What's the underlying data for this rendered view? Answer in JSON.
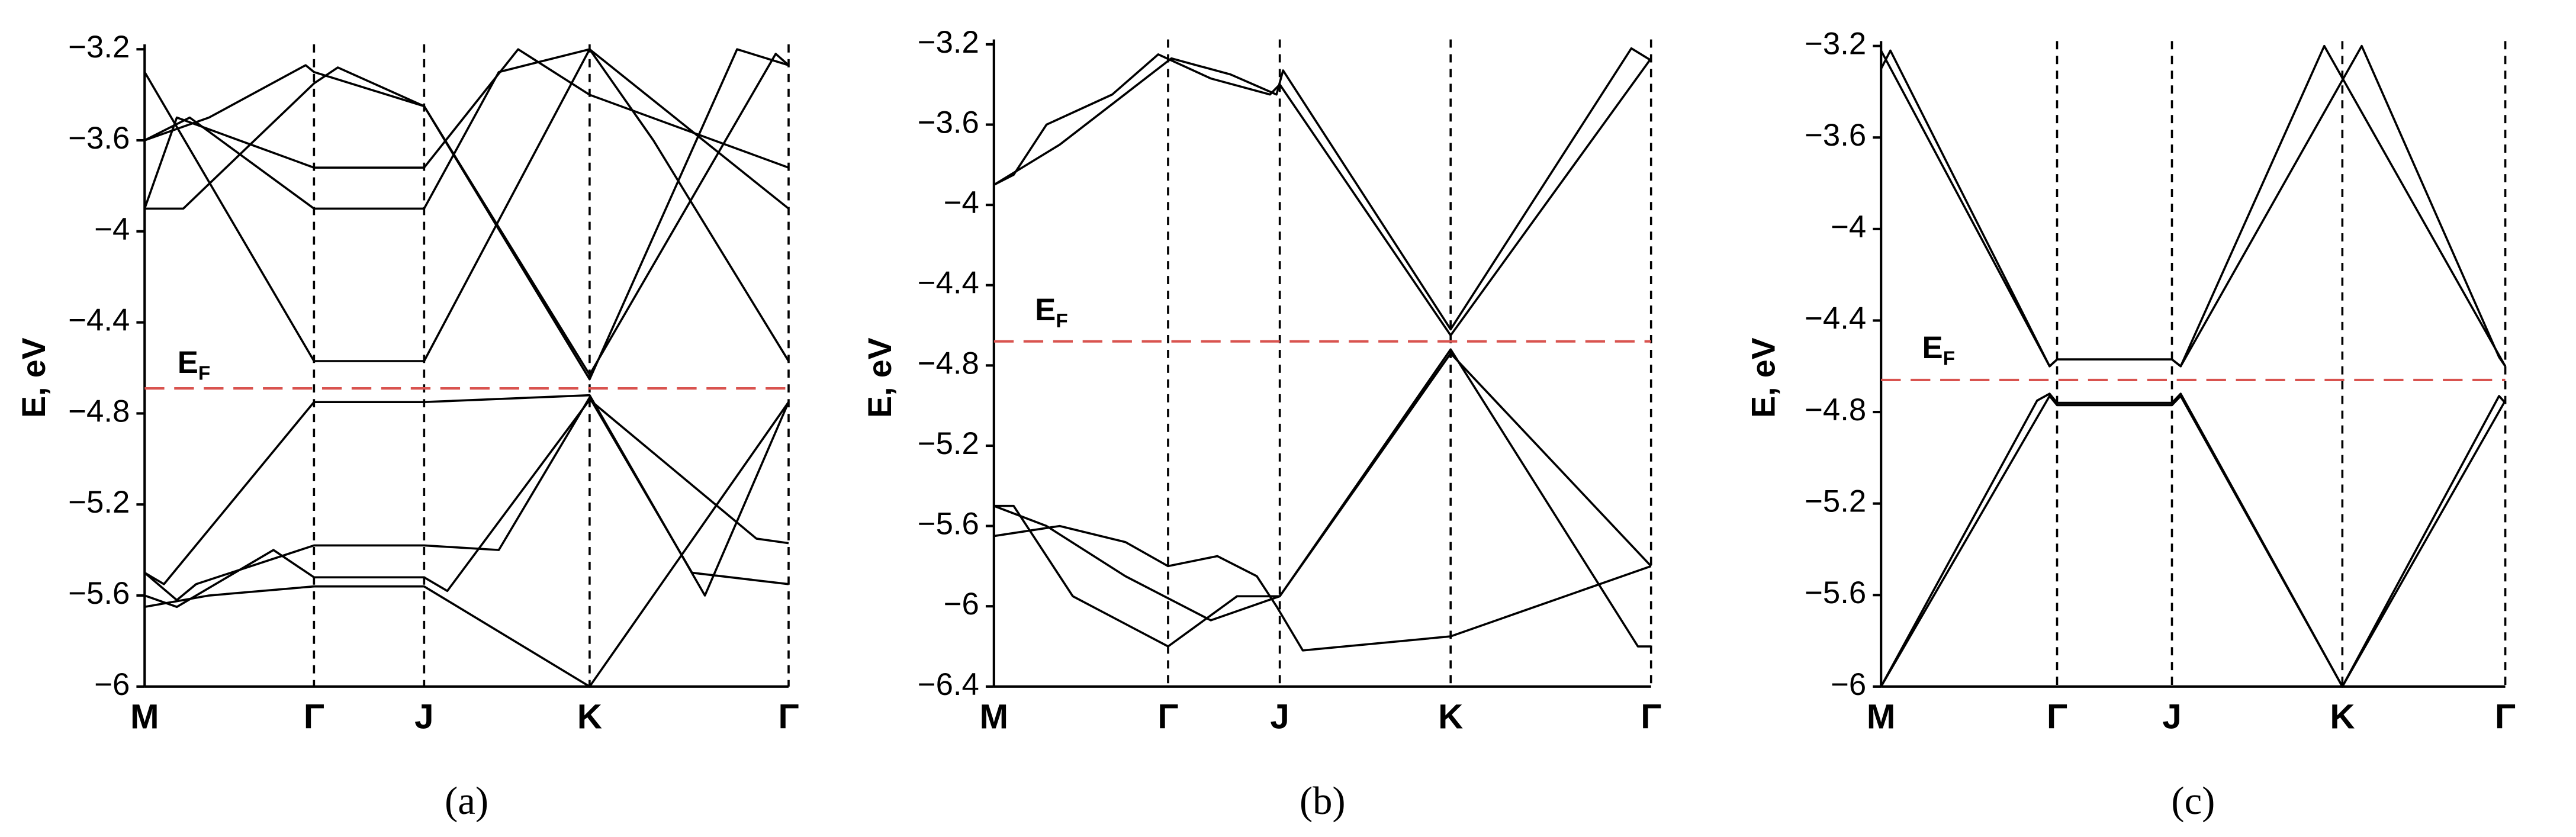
{
  "chart_data": [
    {
      "type": "line",
      "ylabel": "E, eV",
      "panel_label": "(a)",
      "fermi_label": "E",
      "fermi_label_sub": "F",
      "fermi_level": {
        "value": -4.69,
        "color": "#d9534f"
      },
      "xlim": [
        0,
        1
      ],
      "ylim": [
        -6,
        -3.2
      ],
      "xticks": [
        {
          "value": 0,
          "label": "M"
        },
        {
          "value": 0.263,
          "label": "Γ"
        },
        {
          "value": 0.434,
          "label": "J"
        },
        {
          "value": 0.691,
          "label": "K"
        },
        {
          "value": 1,
          "label": "Γ"
        }
      ],
      "yticks": [
        {
          "value": -3.2,
          "label": "−3.2"
        },
        {
          "value": -3.6,
          "label": "−3.6"
        },
        {
          "value": -4,
          "label": "−4"
        },
        {
          "value": -4.4,
          "label": "−4.4"
        },
        {
          "value": -4.8,
          "label": "−4.8"
        },
        {
          "value": -5.2,
          "label": "−5.2"
        },
        {
          "value": -5.6,
          "label": "−5.6"
        },
        {
          "value": -6,
          "label": "−6"
        }
      ],
      "series": [
        {
          "color": "#000",
          "x": [
            0,
            0.1,
            0.25,
            0.263,
            0.434,
            0.691,
            0.92,
            1
          ],
          "values": [
            -3.6,
            -3.5,
            -3.27,
            -3.3,
            -3.45,
            -4.65,
            -3.2,
            -3.27
          ]
        },
        {
          "color": "#000",
          "x": [
            0,
            0.06,
            0.263,
            0.3,
            0.434,
            0.691,
            0.98,
            1
          ],
          "values": [
            -3.9,
            -3.9,
            -3.35,
            -3.28,
            -3.45,
            -4.63,
            -3.22,
            -3.27
          ]
        },
        {
          "color": "#000",
          "x": [
            0,
            0.263,
            0.434,
            0.691,
            0.79,
            1
          ],
          "values": [
            -3.3,
            -4.57,
            -4.57,
            -3.2,
            -3.6,
            -4.57
          ]
        },
        {
          "color": "#000",
          "x": [
            0,
            0.05,
            0.263,
            0.434,
            0.58,
            0.691,
            1
          ],
          "values": [
            -3.9,
            -3.5,
            -3.72,
            -3.72,
            -3.2,
            -3.4,
            -3.72
          ]
        },
        {
          "color": "#000",
          "x": [
            0,
            0.07,
            0.263,
            0.434,
            0.55,
            0.691,
            1
          ],
          "values": [
            -3.6,
            -3.5,
            -3.9,
            -3.9,
            -3.3,
            -3.2,
            -3.9
          ]
        },
        {
          "color": "#000",
          "x": [
            0,
            0.03,
            0.263,
            0.434,
            0.691,
            0.87,
            1
          ],
          "values": [
            -5.5,
            -5.55,
            -4.75,
            -4.75,
            -4.72,
            -5.6,
            -4.75
          ]
        },
        {
          "color": "#000",
          "x": [
            0,
            0.05,
            0.08,
            0.263,
            0.434,
            0.55,
            0.691,
            0.85,
            1
          ],
          "values": [
            -5.5,
            -5.62,
            -5.55,
            -5.38,
            -5.38,
            -5.4,
            -4.73,
            -5.5,
            -5.55
          ]
        },
        {
          "color": "#000",
          "x": [
            0,
            0.1,
            0.263,
            0.434,
            0.691,
            1
          ],
          "values": [
            -5.65,
            -5.6,
            -5.56,
            -5.56,
            -6,
            -4.75
          ]
        },
        {
          "color": "#000",
          "x": [
            0,
            0.05,
            0.2,
            0.263,
            0.434,
            0.47,
            0.691,
            0.95,
            1
          ],
          "values": [
            -5.6,
            -5.65,
            -5.4,
            -5.52,
            -5.52,
            -5.58,
            -4.74,
            -5.35,
            -5.37
          ]
        }
      ]
    },
    {
      "type": "line",
      "ylabel": "E, eV",
      "panel_label": "(b)",
      "fermi_label": "E",
      "fermi_label_sub": "F",
      "fermi_level": {
        "value": -4.68,
        "color": "#d9534f"
      },
      "xlim": [
        0,
        1
      ],
      "ylim": [
        -6.4,
        -3.2
      ],
      "xticks": [
        {
          "value": 0,
          "label": "M"
        },
        {
          "value": 0.265,
          "label": "Γ"
        },
        {
          "value": 0.435,
          "label": "J"
        },
        {
          "value": 0.695,
          "label": "K"
        },
        {
          "value": 1,
          "label": "Γ"
        }
      ],
      "yticks": [
        {
          "value": -3.2,
          "label": "−3.2"
        },
        {
          "value": -3.6,
          "label": "−3.6"
        },
        {
          "value": -4,
          "label": "−4"
        },
        {
          "value": -4.4,
          "label": "−4.4"
        },
        {
          "value": -4.8,
          "label": "−4.8"
        },
        {
          "value": -5.2,
          "label": "−5.2"
        },
        {
          "value": -5.6,
          "label": "−5.6"
        },
        {
          "value": -6,
          "label": "−6"
        },
        {
          "value": -6.4,
          "label": "−6.4"
        }
      ],
      "series": [
        {
          "color": "#000",
          "x": [
            0,
            0.03,
            0.08,
            0.18,
            0.25,
            0.33,
            0.42,
            0.435,
            0.695,
            1
          ],
          "values": [
            -3.9,
            -3.85,
            -3.6,
            -3.45,
            -3.25,
            -3.37,
            -3.45,
            -3.4,
            -4.65,
            -3.27
          ]
        },
        {
          "color": "#000",
          "x": [
            0,
            0.1,
            0.27,
            0.36,
            0.43,
            0.44,
            0.695,
            0.97,
            1
          ],
          "values": [
            -3.9,
            -3.7,
            -3.27,
            -3.35,
            -3.45,
            -3.33,
            -4.62,
            -3.22,
            -3.28
          ]
        },
        {
          "color": "#000",
          "x": [
            0,
            0.03,
            0.12,
            0.265,
            0.37,
            0.435,
            0.695,
            0.98,
            1
          ],
          "values": [
            -5.5,
            -5.5,
            -5.95,
            -6.2,
            -5.95,
            -5.95,
            -4.72,
            -6.2,
            -6.2
          ]
        },
        {
          "color": "#000",
          "x": [
            0,
            0.1,
            0.2,
            0.265,
            0.34,
            0.4,
            0.43,
            0.47,
            0.695,
            1
          ],
          "values": [
            -5.65,
            -5.6,
            -5.68,
            -5.8,
            -5.75,
            -5.85,
            -6,
            -6.22,
            -6.15,
            -5.8
          ]
        },
        {
          "color": "#000",
          "x": [
            0,
            0.08,
            0.2,
            0.33,
            0.435,
            0.695,
            1
          ],
          "values": [
            -5.5,
            -5.6,
            -5.85,
            -6.07,
            -5.95,
            -4.74,
            -5.8
          ]
        }
      ]
    },
    {
      "type": "line",
      "ylabel": "E, eV",
      "panel_label": "(c)",
      "fermi_label": "E",
      "fermi_label_sub": "F",
      "fermi_level": {
        "value": -4.66,
        "color": "#d9534f"
      },
      "xlim": [
        0,
        1
      ],
      "ylim": [
        -6,
        -3.2
      ],
      "xticks": [
        {
          "value": 0,
          "label": "M"
        },
        {
          "value": 0.282,
          "label": "Γ"
        },
        {
          "value": 0.466,
          "label": "J"
        },
        {
          "value": 0.739,
          "label": "K"
        },
        {
          "value": 1,
          "label": "Γ"
        }
      ],
      "yticks": [
        {
          "value": -3.2,
          "label": "−3.2"
        },
        {
          "value": -3.6,
          "label": "−3.6"
        },
        {
          "value": -4,
          "label": "−4"
        },
        {
          "value": -4.4,
          "label": "−4.4"
        },
        {
          "value": -4.8,
          "label": "−4.8"
        },
        {
          "value": -5.2,
          "label": "−5.2"
        },
        {
          "value": -5.6,
          "label": "−5.6"
        },
        {
          "value": -6,
          "label": "−6"
        }
      ],
      "series": [
        {
          "color": "#000",
          "x": [
            0,
            0.015,
            0.27,
            0.282,
            0.466,
            0.48,
            0.71,
            1
          ],
          "values": [
            -3.3,
            -3.22,
            -4.6,
            -4.57,
            -4.57,
            -4.6,
            -3.2,
            -4.6
          ]
        },
        {
          "color": "#000",
          "x": [
            0,
            0.27,
            0.282,
            0.466,
            0.48,
            0.77,
            0.99,
            1
          ],
          "values": [
            -3.22,
            -4.6,
            -4.57,
            -4.57,
            -4.6,
            -3.2,
            -4.56,
            -4.6
          ]
        },
        {
          "color": "#000",
          "x": [
            0,
            0.25,
            0.27,
            0.282,
            0.466,
            0.48,
            0.739,
            0.99,
            1
          ],
          "values": [
            -6,
            -4.75,
            -4.72,
            -4.76,
            -4.76,
            -4.72,
            -6,
            -4.73,
            -4.76
          ]
        },
        {
          "color": "#000",
          "x": [
            0,
            0.27,
            0.282,
            0.466,
            0.48,
            0.739,
            1
          ],
          "values": [
            -6,
            -4.73,
            -4.77,
            -4.77,
            -4.73,
            -6,
            -4.75
          ]
        }
      ]
    }
  ]
}
